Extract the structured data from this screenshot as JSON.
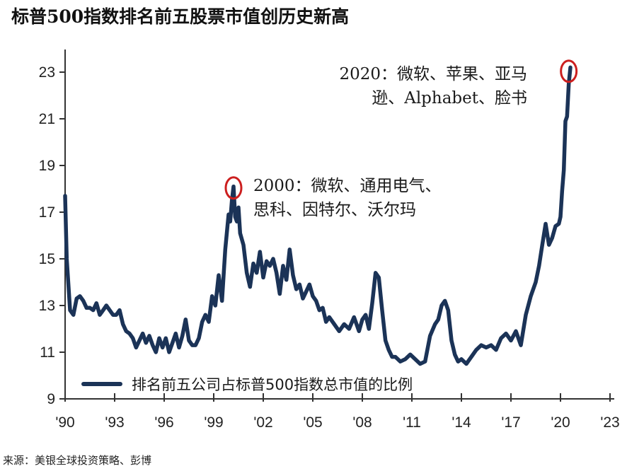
{
  "title": "标普500指数排名前五股票市值创历史新高",
  "source": "来源：美银全球投资策略、彭博",
  "colors": {
    "line": "#1b3357",
    "highlight": "#cc1f1f",
    "axis": "#333333"
  },
  "chart_data": {
    "type": "line",
    "title": "标普500指数排名前五股票市值创历史新高",
    "xlabel": "",
    "ylabel": "",
    "ylim": [
      9,
      24
    ],
    "xlim": [
      1990,
      2023
    ],
    "grid": false,
    "legend_position": "bottom-left inside",
    "yticks": [
      9,
      11,
      13,
      15,
      17,
      19,
      21,
      23
    ],
    "xtick_labels": [
      "'90",
      "'93",
      "'96",
      "'99",
      "'02",
      "'05",
      "'08",
      "'11",
      "'14",
      "'17",
      "'20",
      "'23"
    ],
    "series": [
      {
        "name": "排名前五公司占标普500指数总市值的比例",
        "x": [
          1990.0,
          1990.1,
          1990.3,
          1990.5,
          1990.7,
          1990.9,
          1991.1,
          1991.3,
          1991.5,
          1991.7,
          1991.9,
          1992.1,
          1992.3,
          1992.5,
          1992.7,
          1992.9,
          1993.1,
          1993.3,
          1993.5,
          1993.7,
          1993.9,
          1994.1,
          1994.3,
          1994.5,
          1994.7,
          1994.9,
          1995.1,
          1995.3,
          1995.5,
          1995.7,
          1995.9,
          1996.1,
          1996.3,
          1996.5,
          1996.7,
          1996.9,
          1997.1,
          1997.3,
          1997.5,
          1997.7,
          1997.9,
          1998.1,
          1998.3,
          1998.5,
          1998.7,
          1998.9,
          1999.1,
          1999.3,
          1999.5,
          1999.7,
          1999.9,
          2000.0,
          2000.1,
          2000.2,
          2000.3,
          2000.4,
          2000.5,
          2000.6,
          2000.8,
          2001.0,
          2001.2,
          2001.4,
          2001.6,
          2001.8,
          2002.0,
          2002.2,
          2002.4,
          2002.6,
          2002.8,
          2003.0,
          2003.2,
          2003.4,
          2003.6,
          2003.8,
          2004.0,
          2004.2,
          2004.4,
          2004.6,
          2004.8,
          2005.0,
          2005.2,
          2005.4,
          2005.6,
          2005.8,
          2006.0,
          2006.3,
          2006.6,
          2006.9,
          2007.2,
          2007.5,
          2007.8,
          2008.0,
          2008.2,
          2008.4,
          2008.6,
          2008.8,
          2009.0,
          2009.2,
          2009.4,
          2009.6,
          2009.8,
          2010.0,
          2010.3,
          2010.6,
          2010.9,
          2011.2,
          2011.5,
          2011.8,
          2012.1,
          2012.4,
          2012.6,
          2012.8,
          2013.0,
          2013.2,
          2013.4,
          2013.6,
          2013.8,
          2014.0,
          2014.3,
          2014.6,
          2014.9,
          2015.2,
          2015.5,
          2015.8,
          2016.1,
          2016.4,
          2016.7,
          2017.0,
          2017.3,
          2017.6,
          2017.9,
          2018.2,
          2018.5,
          2018.7,
          2018.9,
          2019.1,
          2019.3,
          2019.5,
          2019.7,
          2019.9,
          2020.0,
          2020.1,
          2020.2,
          2020.3,
          2020.4,
          2020.5,
          2020.6
        ],
        "values": [
          17.7,
          15.0,
          12.8,
          12.6,
          13.3,
          13.4,
          13.2,
          12.9,
          12.9,
          12.8,
          13.1,
          12.6,
          12.8,
          13.0,
          12.8,
          12.6,
          12.6,
          12.8,
          12.2,
          11.9,
          11.8,
          11.6,
          11.2,
          11.5,
          11.8,
          11.4,
          11.7,
          11.3,
          11.0,
          11.6,
          11.2,
          11.6,
          11.0,
          11.4,
          11.8,
          11.2,
          11.7,
          12.4,
          11.5,
          11.3,
          11.3,
          11.6,
          12.3,
          12.6,
          12.3,
          13.4,
          13.0,
          14.3,
          13.2,
          15.4,
          16.9,
          16.6,
          17.5,
          18.1,
          16.8,
          16.6,
          17.2,
          16.1,
          15.6,
          14.4,
          13.8,
          14.8,
          14.4,
          15.3,
          14.2,
          14.9,
          14.7,
          15.0,
          14.4,
          13.5,
          14.7,
          14.1,
          15.4,
          14.3,
          13.7,
          13.9,
          13.3,
          13.6,
          13.9,
          13.4,
          13.2,
          12.8,
          12.9,
          12.3,
          12.5,
          12.2,
          11.9,
          12.2,
          12.0,
          12.5,
          11.9,
          12.4,
          12.6,
          12.0,
          13.1,
          14.4,
          14.2,
          12.8,
          11.5,
          11.1,
          10.8,
          10.8,
          10.6,
          10.7,
          10.9,
          10.7,
          10.5,
          10.6,
          11.7,
          12.2,
          12.4,
          13.0,
          13.2,
          12.8,
          11.5,
          10.9,
          10.6,
          10.7,
          10.5,
          10.8,
          11.1,
          11.3,
          11.2,
          11.3,
          11.1,
          11.6,
          11.8,
          11.5,
          11.9,
          11.3,
          12.6,
          13.4,
          14.0,
          14.7,
          15.6,
          16.5,
          15.6,
          15.9,
          16.4,
          16.5,
          16.8,
          17.9,
          18.8,
          20.9,
          21.1,
          22.5,
          23.2
        ]
      }
    ],
    "annotations": [
      {
        "x": 2000.2,
        "y": 18.1,
        "text_line1": "2000：微软、通用电气、",
        "text_line2": "思科、因特尔、沃尔玛",
        "marker": "red-circle"
      },
      {
        "x": 2020.5,
        "y": 23.1,
        "text_line1": "2020：微软、苹果、亚马",
        "text_line2": "逊、Alphabet、脸书",
        "marker": "red-circle"
      }
    ]
  },
  "legend": {
    "label": "排名前五公司占标普500指数总市值的比例"
  }
}
